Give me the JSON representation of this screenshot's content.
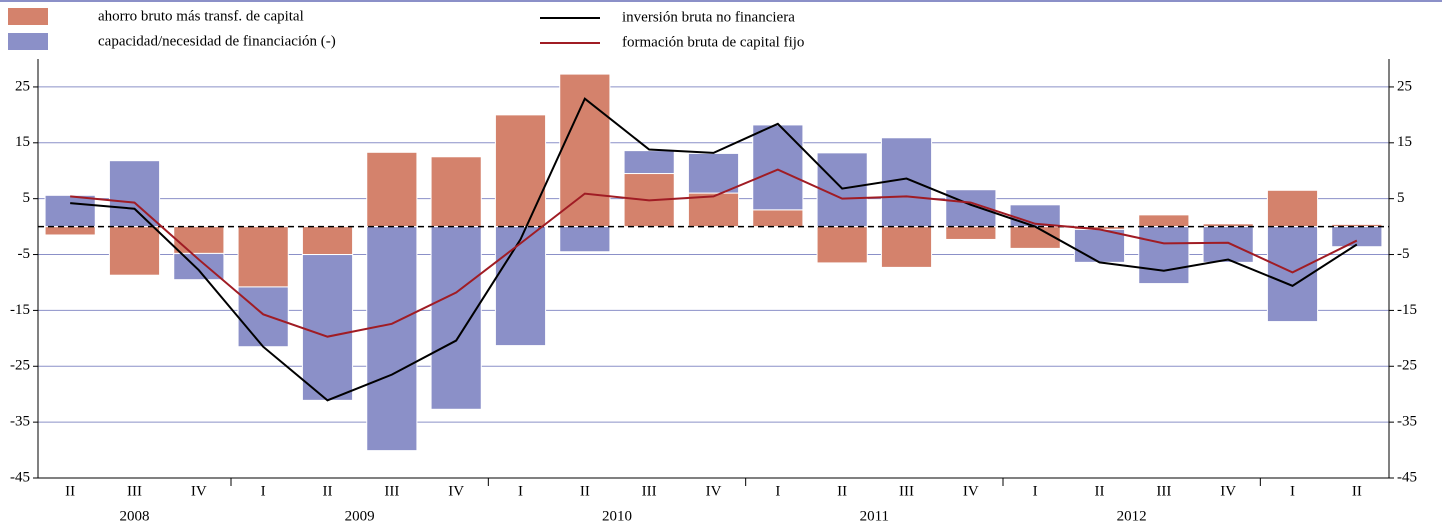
{
  "chart_data": {
    "type": "bar",
    "categories": [
      "II",
      "III",
      "IV",
      "I",
      "II",
      "III",
      "IV",
      "I",
      "II",
      "III",
      "IV",
      "I",
      "II",
      "III",
      "IV",
      "I",
      "II",
      "III",
      "IV",
      "I",
      "II"
    ],
    "x_group_labels": [
      "2008",
      "2009",
      "2010",
      "2011",
      "2012"
    ],
    "series": [
      {
        "name": "ahorro bruto más transf. de capital",
        "type": "bar",
        "color": "#d4826c",
        "values": [
          -1.5,
          -8.7,
          -4.8,
          -10.8,
          -5.0,
          13.3,
          12.5,
          20.0,
          27.3,
          9.5,
          6.0,
          3.0,
          -6.5,
          -7.3,
          -2.3,
          -3.9,
          -0.5,
          2.1,
          0.5,
          6.5,
          0.4
        ]
      },
      {
        "name": "capacidad/necesidad de financiación (-)",
        "type": "bar",
        "color": "#8b90c8",
        "values": [
          5.6,
          11.8,
          -4.7,
          -10.7,
          -26.1,
          -40.1,
          -32.7,
          -21.3,
          -4.5,
          4.1,
          7.1,
          15.2,
          13.2,
          15.9,
          6.6,
          3.9,
          -5.9,
          -10.2,
          -6.4,
          -17.0,
          -3.6
        ]
      },
      {
        "name": "inversión bruta no financiera",
        "type": "line",
        "color": "#000000",
        "values": [
          4.2,
          3.2,
          -7.8,
          -21.5,
          -31.1,
          -26.5,
          -20.4,
          -2.3,
          22.9,
          13.8,
          13.2,
          18.4,
          6.8,
          8.6,
          3.9,
          0.0,
          -6.4,
          -7.9,
          -5.9,
          -10.6,
          -3.2
        ]
      },
      {
        "name": "formación bruta de capital fijo",
        "type": "line",
        "color": "#a01c24",
        "values": [
          5.4,
          4.3,
          -5.9,
          -15.7,
          -19.7,
          -17.4,
          -11.8,
          -3.0,
          5.9,
          4.7,
          5.4,
          10.2,
          5.0,
          5.4,
          4.3,
          0.5,
          -0.5,
          -3.0,
          -2.9,
          -8.2,
          -2.5
        ]
      }
    ],
    "ylim": [
      -45,
      30
    ],
    "yticks": [
      25,
      15,
      5,
      -5,
      -15,
      -25,
      -35,
      -45
    ],
    "grid": true,
    "legend": "top"
  }
}
